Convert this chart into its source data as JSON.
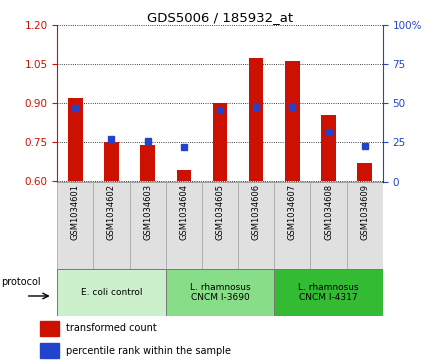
{
  "title": "GDS5006 / 185932_at",
  "samples": [
    "GSM1034601",
    "GSM1034602",
    "GSM1034603",
    "GSM1034604",
    "GSM1034605",
    "GSM1034606",
    "GSM1034607",
    "GSM1034608",
    "GSM1034609"
  ],
  "transformed_count": [
    0.92,
    0.75,
    0.74,
    0.645,
    0.9,
    1.075,
    1.065,
    0.855,
    0.67
  ],
  "percentile_rank": [
    47,
    27,
    26,
    22,
    46,
    48,
    48,
    32,
    23
  ],
  "ylim_left": [
    0.6,
    1.2
  ],
  "ylim_right": [
    0,
    100
  ],
  "yticks_left": [
    0.6,
    0.75,
    0.9,
    1.05,
    1.2
  ],
  "yticks_right": [
    0,
    25,
    50,
    75,
    100
  ],
  "bar_color": "#cc1100",
  "dot_color": "#2244cc",
  "group_colors": [
    "#ccf0cc",
    "#88dd88",
    "#33bb33"
  ],
  "group_labels": [
    "E. coli control",
    "L. rhamnosus\nCNCM I-3690",
    "L. rhamnosus\nCNCM I-4317"
  ],
  "group_ranges": [
    [
      0,
      2
    ],
    [
      3,
      5
    ],
    [
      6,
      8
    ]
  ],
  "protocol_label": "protocol",
  "legend_bar_label": "transformed count",
  "legend_dot_label": "percentile rank within the sample",
  "tick_color_left": "#cc1100",
  "tick_color_right": "#2244cc",
  "sample_bg_color": "#e0e0e0",
  "sample_border_color": "#aaaaaa"
}
